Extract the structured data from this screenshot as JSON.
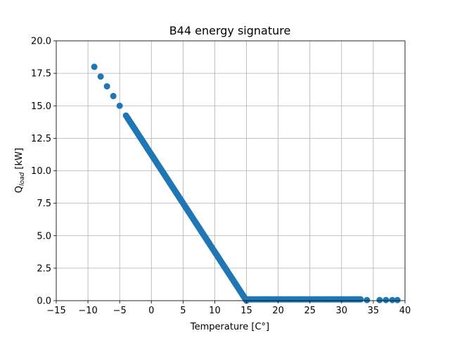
{
  "chart_data": {
    "type": "scatter",
    "title": "B44 energy signature",
    "xlabel": "Temperature [C°]",
    "ylabel_main": "Q",
    "ylabel_sub": "load",
    "ylabel_unit": " [kW]",
    "xlim": [
      -15,
      40
    ],
    "ylim": [
      0,
      20
    ],
    "xticks": [
      -15,
      -10,
      -5,
      0,
      5,
      10,
      15,
      20,
      25,
      30,
      35,
      40
    ],
    "yticks": [
      0.0,
      2.5,
      5.0,
      7.5,
      10.0,
      12.5,
      15.0,
      17.5,
      20.0
    ],
    "xtick_labels": [
      "−15",
      "−10",
      "−5",
      "0",
      "5",
      "10",
      "15",
      "20",
      "25",
      "30",
      "35",
      "40"
    ],
    "ytick_labels": [
      "0.0",
      "2.5",
      "5.0",
      "7.5",
      "10.0",
      "12.5",
      "15.0",
      "17.5",
      "20.0"
    ],
    "grid": true,
    "marker_color": "#1f77b4",
    "series": [
      {
        "segments": [
          {
            "x_start": -9,
            "x_end": -4,
            "step": 1,
            "slope": -0.75,
            "intercept": 11.25
          },
          {
            "x_start": -3.8,
            "x_end": 15,
            "step": 0.1,
            "slope": -0.75,
            "intercept": 11.25
          },
          {
            "x_start": 15,
            "x_end": 33,
            "step": 0.2,
            "constant": 0.1
          },
          {
            "x": [
              34,
              36,
              37,
              38,
              38.8
            ],
            "y": [
              0.05,
              0.05,
              0.05,
              0.05,
              0.05
            ]
          }
        ]
      }
    ]
  }
}
